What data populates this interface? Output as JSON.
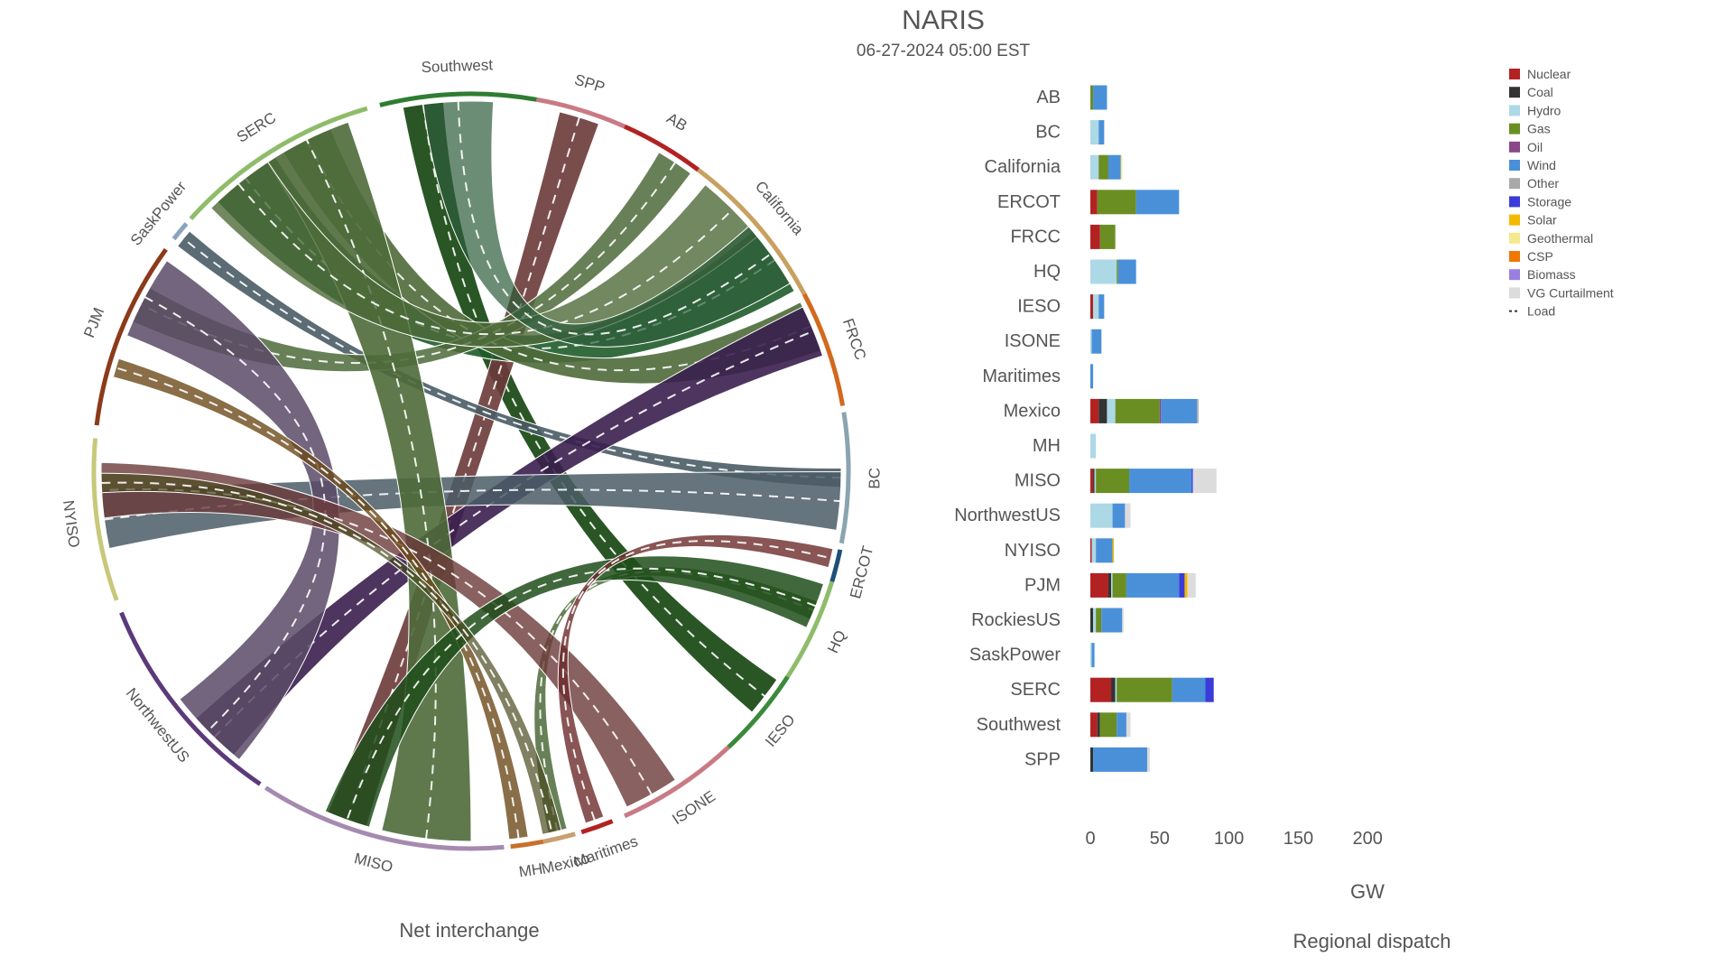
{
  "header": {
    "title": "NARIS",
    "subtitle": "06-27-2024 05:00 EST"
  },
  "left_panel": {
    "caption": "Net interchange"
  },
  "right_panel": {
    "caption": "Regional dispatch",
    "xlabel": "GW"
  },
  "colors": {
    "Nuclear": "#b22222",
    "Coal": "#333333",
    "Hydro": "#add8e6",
    "Gas": "#6b8e23",
    "Oil": "#8b4789",
    "Wind": "#4a90d9",
    "Other": "#a9a9a9",
    "Storage": "#3b3bd9",
    "Solar": "#f5b800",
    "Geothermal": "#f5e98f",
    "CSP": "#f07800",
    "Biomass": "#9a7fe0",
    "VG Curtailment": "#dcdcdc",
    "Load": "#333333"
  },
  "chord_regions": [
    {
      "name": "Southwest",
      "color": "#2e7d32"
    },
    {
      "name": "SPP",
      "color": "#c97a84"
    },
    {
      "name": "AB",
      "color": "#b22222"
    },
    {
      "name": "California",
      "color": "#c8a060"
    },
    {
      "name": "FRCC",
      "color": "#d2691e"
    },
    {
      "name": "BC",
      "color": "#8aa4b0"
    },
    {
      "name": "ERCOT",
      "color": "#1f4e79"
    },
    {
      "name": "HQ",
      "color": "#8fbc6a"
    },
    {
      "name": "IESO",
      "color": "#3b8a3b"
    },
    {
      "name": "ISONE",
      "color": "#c97a84"
    },
    {
      "name": "Maritimes",
      "color": "#b22222"
    },
    {
      "name": "Mexico",
      "color": "#c8a070"
    },
    {
      "name": "MH",
      "color": "#c8702a"
    },
    {
      "name": "MISO",
      "color": "#a58ab0"
    },
    {
      "name": "NorthwestUS",
      "color": "#5b3a7a"
    },
    {
      "name": "NYISO",
      "color": "#c8c87a"
    },
    {
      "name": "PJM",
      "color": "#8b3a1a"
    },
    {
      "name": "SaskPower",
      "color": "#8aa4c0"
    },
    {
      "name": "SERC",
      "color": "#8fbc6a"
    }
  ],
  "chart_data": {
    "type": "bar",
    "title": "Regional dispatch",
    "xlabel": "GW",
    "xlim": [
      0,
      200
    ],
    "xticks": [
      "0",
      "50",
      "100",
      "150",
      "200"
    ],
    "legend_position": "top-right",
    "legend": [
      "Nuclear",
      "Coal",
      "Hydro",
      "Gas",
      "Oil",
      "Wind",
      "Other",
      "Storage",
      "Solar",
      "Geothermal",
      "CSP",
      "Biomass",
      "VG Curtailment",
      "Load"
    ],
    "categories": [
      "AB",
      "BC",
      "California",
      "ERCOT",
      "FRCC",
      "HQ",
      "IESO",
      "ISONE",
      "Maritimes",
      "Mexico",
      "MH",
      "MISO",
      "NorthwestUS",
      "NYISO",
      "PJM",
      "RockiesUS",
      "SaskPower",
      "SERC",
      "Southwest",
      "SPP"
    ],
    "series": [
      {
        "name": "Nuclear",
        "values": [
          0,
          0,
          0,
          5,
          7,
          0,
          2,
          0,
          0,
          6,
          0,
          2,
          0,
          1,
          13,
          0,
          0,
          15,
          5,
          0
        ]
      },
      {
        "name": "Coal",
        "values": [
          0,
          0,
          0,
          0,
          0,
          0,
          0,
          0,
          0,
          6,
          0,
          1,
          0,
          0,
          2,
          2,
          0,
          3,
          2,
          2
        ]
      },
      {
        "name": "Hydro",
        "values": [
          0,
          6,
          6,
          0,
          0,
          19,
          4,
          1,
          0,
          6,
          4,
          1,
          16,
          3,
          1,
          2,
          1,
          1,
          0,
          0
        ]
      },
      {
        "name": "Gas",
        "values": [
          2,
          0,
          7,
          28,
          11,
          1,
          0,
          0,
          0,
          32,
          0,
          24,
          0,
          0,
          10,
          4,
          0,
          40,
          12,
          0
        ]
      },
      {
        "name": "Oil",
        "values": [
          0,
          0,
          0,
          0,
          0,
          0,
          0,
          0,
          0,
          1,
          0,
          0,
          0,
          0,
          0,
          0,
          0,
          0,
          0,
          0
        ]
      },
      {
        "name": "Wind",
        "values": [
          10,
          4,
          9,
          31,
          0,
          13,
          4,
          7,
          2,
          26,
          0,
          45,
          9,
          12,
          38,
          15,
          2,
          24,
          7,
          39
        ]
      },
      {
        "name": "Other",
        "values": [
          0,
          0,
          0,
          0,
          0,
          0,
          0,
          0,
          0,
          1,
          0,
          0,
          0,
          0,
          0,
          0,
          0,
          0,
          0,
          0
        ]
      },
      {
        "name": "Storage",
        "values": [
          0,
          0,
          0,
          0,
          0,
          0,
          0,
          0,
          0,
          0,
          0,
          1,
          0,
          0,
          4,
          0,
          0,
          6,
          0,
          0
        ]
      },
      {
        "name": "Solar",
        "values": [
          0,
          0,
          0,
          0,
          0,
          0,
          0,
          0,
          0,
          0,
          0,
          0,
          0,
          1,
          2,
          0,
          0,
          0,
          0,
          0
        ]
      },
      {
        "name": "Geothermal",
        "values": [
          0,
          0,
          1,
          0,
          0,
          0,
          0,
          0,
          0,
          0,
          0,
          0,
          0,
          0,
          0,
          0,
          0,
          0,
          0,
          0
        ]
      },
      {
        "name": "CSP",
        "values": [
          0,
          0,
          0,
          0,
          0,
          0,
          0,
          0,
          0,
          0,
          0,
          0,
          0,
          0,
          0,
          0,
          0,
          0,
          0,
          0
        ]
      },
      {
        "name": "Biomass",
        "values": [
          0,
          0,
          0,
          0,
          0,
          0,
          0,
          0,
          0,
          0,
          0,
          0,
          0,
          0,
          0,
          0,
          0,
          0,
          0,
          0
        ]
      },
      {
        "name": "VG Curtailment",
        "values": [
          0,
          0,
          0,
          0,
          0,
          0,
          0,
          0,
          0,
          0,
          0,
          17,
          4,
          0,
          6,
          1,
          0,
          0,
          3,
          2
        ]
      }
    ]
  }
}
